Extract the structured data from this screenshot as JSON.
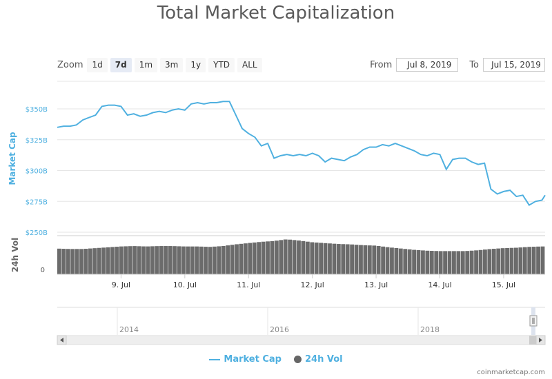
{
  "header": {
    "title": "Total Market Capitalization"
  },
  "zoom": {
    "label": "Zoom",
    "buttons": [
      {
        "label": "1d",
        "active": false
      },
      {
        "label": "7d",
        "active": true
      },
      {
        "label": "1m",
        "active": false
      },
      {
        "label": "3m",
        "active": false
      },
      {
        "label": "1y",
        "active": false
      },
      {
        "label": "YTD",
        "active": false
      },
      {
        "label": "ALL",
        "active": false
      }
    ]
  },
  "range": {
    "from_label": "From",
    "from_value": "Jul 8, 2019",
    "to_label": "To",
    "to_value": "Jul 15, 2019"
  },
  "legend": {
    "market_cap": "Market Cap",
    "volume": "24h Vol"
  },
  "credit": "coinmarketcap.com",
  "colors": {
    "market_cap": "#4fb0e0",
    "volume": "#6b6b6b",
    "grid": "#e6e6e6"
  },
  "navigator": {
    "year_labels": [
      "2014",
      "2016",
      "2018"
    ]
  },
  "chart_data": {
    "type": "line",
    "title": "Total Market Capitalization",
    "x_axis": {
      "ticks": [
        "9. Jul",
        "10. Jul",
        "11. Jul",
        "12. Jul",
        "13. Jul",
        "14. Jul",
        "15. Jul"
      ]
    },
    "y_axis_market_cap": {
      "label": "Market Cap",
      "ticks": [
        "$250B",
        "$275B",
        "$300B",
        "$325B",
        "$350B"
      ],
      "range": [
        250,
        362
      ]
    },
    "y_axis_volume": {
      "label": "24h Vol",
      "ticks": [
        "0"
      ]
    },
    "grid": true,
    "legend_position": "bottom-center",
    "series": [
      {
        "name": "Market Cap",
        "unit": "billion USD",
        "x": [
          8.0,
          8.1,
          8.2,
          8.3,
          8.4,
          8.5,
          8.6,
          8.7,
          8.8,
          8.9,
          9.0,
          9.1,
          9.2,
          9.3,
          9.4,
          9.5,
          9.6,
          9.7,
          9.8,
          9.9,
          10.0,
          10.1,
          10.2,
          10.3,
          10.4,
          10.5,
          10.6,
          10.7,
          10.8,
          10.9,
          11.0,
          11.1,
          11.2,
          11.3,
          11.4,
          11.5,
          11.6,
          11.7,
          11.8,
          11.9,
          12.0,
          12.1,
          12.2,
          12.3,
          12.4,
          12.5,
          12.6,
          12.7,
          12.8,
          12.9,
          13.0,
          13.1,
          13.2,
          13.3,
          13.4,
          13.5,
          13.6,
          13.7,
          13.8,
          13.9,
          14.0,
          14.1,
          14.2,
          14.3,
          14.4,
          14.5,
          14.6,
          14.7,
          14.8,
          14.9,
          15.0,
          15.1,
          15.2,
          15.3,
          15.4,
          15.5,
          15.6,
          15.65
        ],
        "values": [
          335,
          336,
          336,
          337,
          341,
          343,
          345,
          352,
          353,
          353,
          352,
          345,
          346,
          344,
          345,
          347,
          348,
          347,
          349,
          350,
          349,
          354,
          355,
          354,
          355,
          355,
          356,
          356,
          345,
          334,
          330,
          327,
          320,
          322,
          310,
          312,
          313,
          312,
          313,
          312,
          314,
          312,
          307,
          310,
          309,
          308,
          311,
          313,
          317,
          319,
          319,
          321,
          320,
          322,
          320,
          318,
          316,
          313,
          312,
          314,
          313,
          301,
          309,
          310,
          310,
          307,
          305,
          306,
          285,
          281,
          283,
          284,
          279,
          280,
          272,
          275,
          276,
          280
        ]
      },
      {
        "name": "24h Vol",
        "unit": "billion USD",
        "x": [
          8.0,
          8.2,
          8.4,
          8.6,
          8.8,
          9.0,
          9.2,
          9.4,
          9.6,
          9.8,
          10.0,
          10.2,
          10.4,
          10.6,
          10.8,
          11.0,
          11.2,
          11.4,
          11.6,
          11.8,
          12.0,
          12.2,
          12.4,
          12.6,
          12.8,
          13.0,
          13.2,
          13.4,
          13.6,
          13.8,
          14.0,
          14.2,
          14.4,
          14.6,
          14.8,
          15.0,
          15.2,
          15.4,
          15.6
        ],
        "values": [
          61,
          60,
          60,
          62,
          64,
          66,
          67,
          66,
          67,
          67,
          66,
          66,
          65,
          67,
          71,
          74,
          77,
          79,
          83,
          80,
          76,
          74,
          72,
          71,
          69,
          68,
          64,
          61,
          58,
          56,
          55,
          55,
          55,
          57,
          60,
          62,
          63,
          65,
          66
        ]
      }
    ]
  }
}
